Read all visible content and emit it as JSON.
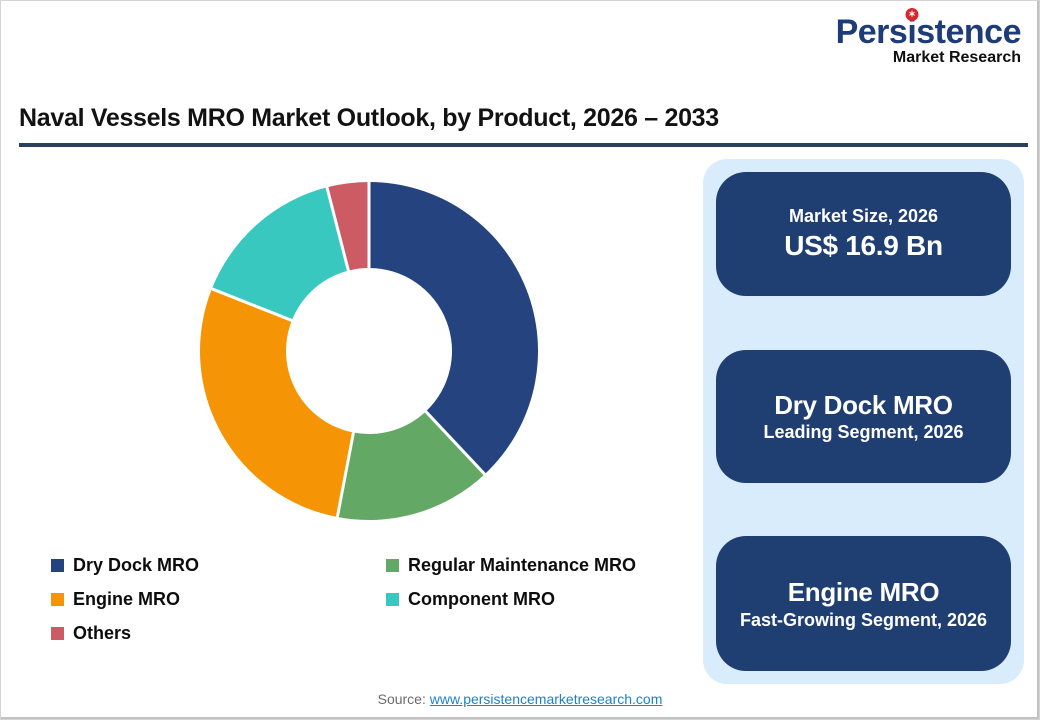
{
  "logo": {
    "name_pre": "Pers",
    "name_i": "i",
    "name_post": "stence",
    "badge_glyph": "✶",
    "subtitle": "Market Research",
    "text_color": "#1e3c78",
    "badge_color": "#d7282f"
  },
  "header": {
    "title": "Naval Vessels MRO Market Outlook, by Product, 2026 – 2033",
    "underline_color": "#2b3f5e"
  },
  "chart_data": {
    "type": "pie",
    "subtype": "donut",
    "title": "Naval Vessels MRO Market Outlook, by Product, 2026 – 2033",
    "categories": [
      "Dry Dock MRO",
      "Regular Maintenance MRO",
      "Engine MRO",
      "Component MRO",
      "Others"
    ],
    "values": [
      38,
      15,
      28,
      15,
      4
    ],
    "unit": "% share (estimated from arc angles)",
    "colors": [
      "#24437f",
      "#63a965",
      "#f59505",
      "#38c8c0",
      "#cd5b63"
    ],
    "start_angle_deg": 0,
    "direction": "clockwise",
    "inner_radius_ratio": 0.49,
    "legend_position": "bottom-left",
    "data_labels": "none"
  },
  "info_panel": {
    "background": "#d9ecfb",
    "card_background": "#1f3e72",
    "cards": [
      {
        "top": "Market Size, 2026",
        "bottom": "US$ 16.9 Bn"
      },
      {
        "top": "Dry Dock MRO",
        "bottom": "Leading Segment, 2026"
      },
      {
        "top": "Engine MRO",
        "bottom": "Fast-Growing Segment, 2026"
      }
    ]
  },
  "footer": {
    "source_label": "Source:",
    "source_link": "www.persistencemarketresearch.com"
  }
}
